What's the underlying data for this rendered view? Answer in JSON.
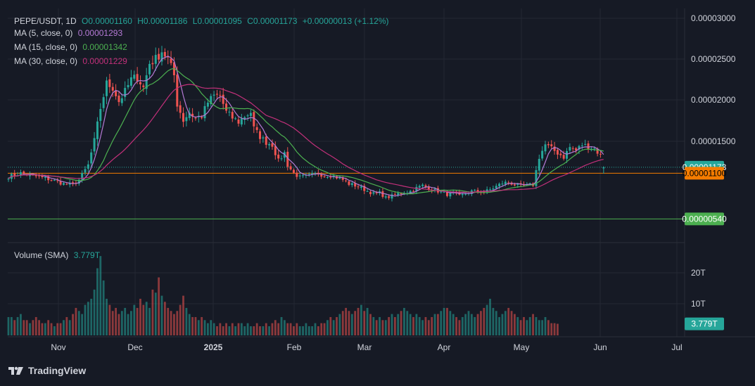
{
  "header": {
    "symbol": "PEPE/USDT, 1D",
    "open": "O0.00001160",
    "high": "H0.00001186",
    "low": "L0.00001095",
    "close": "C0.00001173",
    "change": "+0.00000013 (+1.12%)"
  },
  "indicators": [
    {
      "label": "MA (5, close, 0)",
      "value": "0.00001293",
      "color": "#b57ad6"
    },
    {
      "label": "MA (15, close, 0)",
      "value": "0.00001342",
      "color": "#4cb050"
    },
    {
      "label": "MA (30, close, 0)",
      "value": "0.00001229",
      "color": "#c2307a"
    }
  ],
  "volume": {
    "label": "Volume (SMA)",
    "value": "3.779T",
    "color": "#26a69a"
  },
  "branding": {
    "name": "TradingView"
  },
  "colors": {
    "up": "#26a69a",
    "down": "#ef5350",
    "bg": "#161a25",
    "grid": "#242833",
    "text": "#d1d4dc"
  },
  "chart_data": {
    "type": "candlestick",
    "symbol": "PEPE/USDT",
    "interval": "1D",
    "price_axis": {
      "ticks": [
        "0.00003000",
        "0.00002500",
        "0.00002000",
        "0.00001500"
      ],
      "range": [
        4.1e-06,
        3.1e-06
      ]
    },
    "price_labels": [
      {
        "value": 1.173e-05,
        "text": "0.00001173",
        "color": "#26a69a",
        "line": "dotted"
      },
      {
        "value": 1.1e-05,
        "text": "0.00001100",
        "color": "#f57c00",
        "line": "solid"
      },
      {
        "value": 5.4e-06,
        "text": "0.00000540",
        "color": "#4caf50",
        "line": "solid"
      }
    ],
    "volume_axis": {
      "ticks": [
        "20T",
        "10T"
      ],
      "range": [
        0,
        26
      ]
    },
    "volume_label": "3.779T",
    "time_axis": [
      "Nov",
      "Dec",
      "2025",
      "Feb",
      "Mar",
      "Apr",
      "May",
      "Jun",
      "Jul"
    ],
    "close_keypoints": [
      [
        0,
        10.6
      ],
      [
        4,
        11.0
      ],
      [
        8,
        10.7
      ],
      [
        14,
        10.2
      ],
      [
        18,
        9.7
      ],
      [
        21,
        9.6
      ],
      [
        23,
        10.2
      ],
      [
        26,
        12.0
      ],
      [
        28,
        15.0
      ],
      [
        30,
        19.0
      ],
      [
        32,
        22.0
      ],
      [
        34,
        21.5
      ],
      [
        36,
        19.8
      ],
      [
        38,
        21.0
      ],
      [
        40,
        22.5
      ],
      [
        42,
        22.8
      ],
      [
        44,
        21.5
      ],
      [
        46,
        24.5
      ],
      [
        48,
        25.0
      ],
      [
        50,
        26.0
      ],
      [
        52,
        25.0
      ],
      [
        54,
        23.0
      ],
      [
        55,
        19.5
      ],
      [
        57,
        17.5
      ],
      [
        59,
        18.5
      ],
      [
        61,
        17.7
      ],
      [
        63,
        18.0
      ],
      [
        65,
        19.7
      ],
      [
        67,
        20.5
      ],
      [
        69,
        20.5
      ],
      [
        71,
        18.5
      ],
      [
        73,
        17.8
      ],
      [
        75,
        17.3
      ],
      [
        77,
        18.0
      ],
      [
        79,
        18.5
      ],
      [
        80,
        16.5
      ],
      [
        82,
        15.5
      ],
      [
        84,
        14.8
      ],
      [
        86,
        14.5
      ],
      [
        88,
        12.5
      ],
      [
        90,
        13.5
      ],
      [
        91,
        12.0
      ],
      [
        93,
        11.0
      ],
      [
        95,
        10.5
      ],
      [
        97,
        10.6
      ],
      [
        99,
        10.8
      ],
      [
        101,
        11.0
      ],
      [
        103,
        10.7
      ],
      [
        105,
        10.8
      ],
      [
        107,
        10.5
      ],
      [
        109,
        10.2
      ],
      [
        111,
        9.7
      ],
      [
        113,
        9.5
      ],
      [
        115,
        9.2
      ],
      [
        117,
        8.8
      ],
      [
        119,
        8.5
      ],
      [
        121,
        8.6
      ],
      [
        123,
        8.0
      ],
      [
        125,
        8.2
      ],
      [
        127,
        8.5
      ],
      [
        129,
        8.6
      ],
      [
        131,
        8.8
      ],
      [
        133,
        9.2
      ],
      [
        135,
        9.5
      ],
      [
        137,
        9.2
      ],
      [
        139,
        8.9
      ],
      [
        141,
        8.7
      ],
      [
        143,
        8.4
      ],
      [
        145,
        8.6
      ],
      [
        147,
        8.2
      ],
      [
        149,
        8.5
      ],
      [
        151,
        8.8
      ],
      [
        153,
        8.8
      ],
      [
        155,
        8.7
      ],
      [
        157,
        9.0
      ],
      [
        159,
        9.4
      ],
      [
        161,
        9.8
      ],
      [
        163,
        9.9
      ],
      [
        165,
        9.6
      ],
      [
        167,
        9.4
      ],
      [
        169,
        9.5
      ],
      [
        171,
        9.6
      ],
      [
        173,
        13.0
      ],
      [
        175,
        14.5
      ],
      [
        177,
        14.0
      ],
      [
        179,
        13.5
      ],
      [
        181,
        13.0
      ],
      [
        183,
        14.2
      ],
      [
        185,
        13.8
      ],
      [
        187,
        14.5
      ],
      [
        189,
        14.3
      ],
      [
        191,
        14.0
      ],
      [
        193,
        13.2
      ],
      [
        194,
        11.7
      ]
    ],
    "volume_profile_T": [
      6,
      6,
      5,
      6,
      7,
      5,
      5,
      4,
      5,
      6,
      5,
      4,
      4,
      5,
      4,
      3,
      4,
      4,
      5,
      6,
      5,
      7,
      9,
      8,
      7,
      10,
      11,
      12,
      15,
      22,
      26,
      18,
      12,
      10,
      8,
      9,
      7,
      8,
      9,
      7,
      8,
      10,
      9,
      12,
      10,
      11,
      9,
      15,
      14,
      19,
      13,
      11,
      9,
      8,
      7,
      8,
      10,
      13,
      9,
      7,
      6,
      6,
      5,
      6,
      5,
      4,
      5,
      4,
      3,
      4,
      3,
      4,
      3,
      4,
      3,
      4,
      4,
      3,
      4,
      3,
      3,
      4,
      3,
      3,
      4,
      3,
      4,
      5,
      4,
      6,
      5,
      4,
      4,
      3,
      4,
      3,
      3,
      4,
      3,
      3,
      4,
      3,
      4,
      4,
      5,
      6,
      5,
      6,
      7,
      8,
      9,
      8,
      7,
      8,
      9,
      10,
      8,
      9,
      7,
      6,
      5,
      6,
      5,
      5,
      6,
      7,
      6,
      7,
      8,
      9,
      8,
      7,
      6,
      7,
      6,
      5,
      6,
      5,
      6,
      7,
      7,
      8,
      9,
      9,
      8,
      7,
      6,
      5,
      6,
      7,
      8,
      7,
      6,
      7,
      8,
      9,
      10,
      12,
      9,
      8,
      6,
      7,
      8,
      9,
      8,
      7,
      6,
      5,
      6,
      5,
      6,
      7,
      6,
      5,
      5,
      6,
      5,
      4,
      4,
      3.8
    ]
  }
}
